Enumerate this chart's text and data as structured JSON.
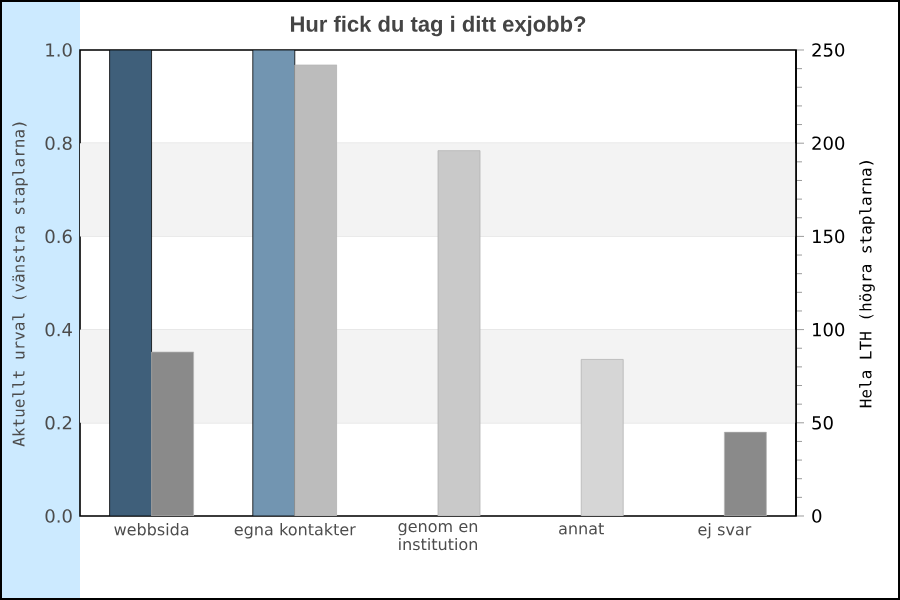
{
  "chart_data": {
    "type": "bar",
    "title": "Hur fick du tag i ditt exjobb?",
    "categories": [
      "webbsida",
      "egna kontakter",
      "genom en institution",
      "annat",
      "ej svar"
    ],
    "series": [
      {
        "axis": "y",
        "colors": [
          "#3f5f7a",
          "#7295b1",
          null,
          null,
          null
        ],
        "values": [
          1,
          1,
          null,
          null,
          null
        ]
      },
      {
        "axis": "y2",
        "colors": [
          "#8a8a8a",
          "#bcbcbc",
          "#c9c9c9",
          "#d6d6d6",
          "#8a8a8a"
        ],
        "values": [
          88,
          242,
          196,
          84,
          45
        ]
      }
    ],
    "ylabel": "Aktuellt urval (vänstra staplarna)",
    "y2label": "Hela LTH (högra staplarna)",
    "ylim": [
      0,
      1
    ],
    "yticks": [
      {
        "value": 0,
        "label": "0.0"
      },
      {
        "value": 0.2,
        "label": "0.2"
      },
      {
        "value": 0.4,
        "label": "0.4"
      },
      {
        "value": 0.6,
        "label": "0.6"
      },
      {
        "value": 0.8,
        "label": "0.8"
      },
      {
        "value": 1,
        "label": "1.0"
      }
    ],
    "y2lim": [
      0,
      250
    ],
    "y2ticks": [
      0,
      50,
      100,
      150,
      200,
      250
    ],
    "grid": "y",
    "bands": [
      {
        "axis": "y",
        "from": 0.2,
        "to": 0.4,
        "color": "#f3f3f3"
      },
      {
        "axis": "y",
        "from": 0.6,
        "to": 0.8,
        "color": "#f3f3f3"
      }
    ]
  }
}
